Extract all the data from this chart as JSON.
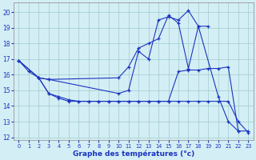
{
  "xlabel": "Graphe des températures (°c)",
  "bg_color": "#d4eef5",
  "line_color": "#1a35be",
  "grid_color": "#a0cccc",
  "xlim": [
    -0.5,
    23.5
  ],
  "ylim": [
    11.8,
    20.6
  ],
  "yticks": [
    12,
    13,
    14,
    15,
    16,
    17,
    18,
    19,
    20
  ],
  "xticks": [
    0,
    1,
    2,
    3,
    4,
    5,
    6,
    7,
    8,
    9,
    10,
    11,
    12,
    13,
    14,
    15,
    16,
    17,
    18,
    19,
    20,
    21,
    22,
    23
  ],
  "series": [
    {
      "x": [
        0,
        1,
        2,
        3,
        10,
        11,
        12,
        13,
        14,
        15,
        16,
        17,
        18,
        20,
        21,
        22
      ],
      "y": [
        16.9,
        16.2,
        15.8,
        15.7,
        14.8,
        15.0,
        17.5,
        17.0,
        19.5,
        19.7,
        19.5,
        20.1,
        19.1,
        14.6,
        13.0,
        12.4
      ]
    },
    {
      "x": [
        0,
        2,
        3,
        10,
        11,
        12,
        13,
        14,
        15,
        16,
        17,
        18,
        19
      ],
      "y": [
        16.9,
        15.8,
        15.7,
        15.8,
        16.5,
        17.7,
        18.0,
        18.3,
        19.8,
        19.3,
        16.4,
        19.1,
        19.1
      ]
    },
    {
      "x": [
        2,
        3,
        4,
        5,
        6,
        7,
        8,
        9,
        10,
        11,
        12,
        13,
        14,
        15,
        16,
        17,
        18,
        19,
        20,
        21,
        22,
        23
      ],
      "y": [
        15.8,
        14.8,
        14.6,
        14.4,
        14.3,
        14.3,
        14.3,
        14.3,
        14.3,
        14.3,
        14.3,
        14.3,
        14.3,
        14.3,
        16.2,
        16.3,
        16.3,
        16.4,
        16.4,
        16.5,
        12.4,
        12.4
      ]
    },
    {
      "x": [
        0,
        2,
        3,
        4,
        5,
        6,
        7,
        8,
        9,
        10,
        11,
        12,
        13,
        14,
        15,
        16,
        17,
        18,
        19,
        20,
        21,
        22,
        23
      ],
      "y": [
        16.9,
        15.8,
        14.8,
        14.5,
        14.3,
        14.3,
        14.3,
        14.3,
        14.3,
        14.3,
        14.3,
        14.3,
        14.3,
        14.3,
        14.3,
        14.3,
        14.3,
        14.3,
        14.3,
        14.3,
        14.3,
        13.0,
        12.3
      ]
    }
  ]
}
